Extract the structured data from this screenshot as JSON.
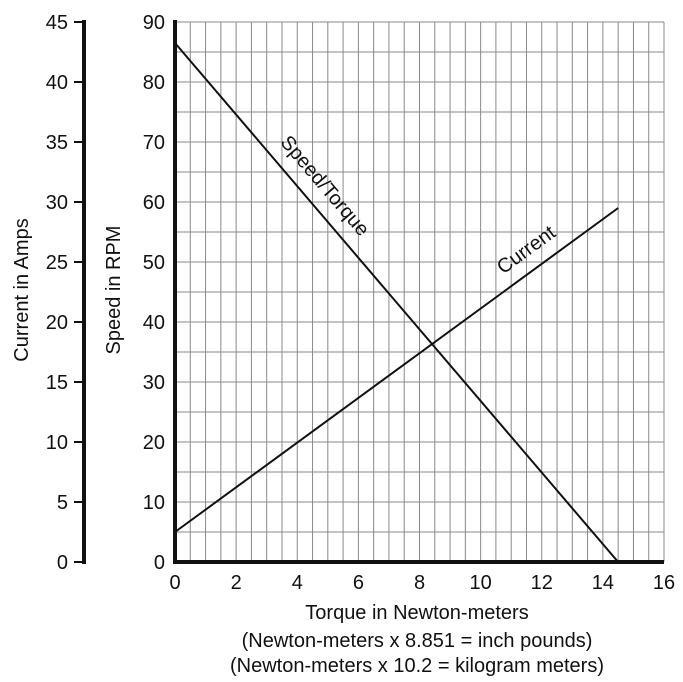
{
  "chart_data": {
    "type": "line",
    "xlabel": "Torque in Newton-meters",
    "x_notes": [
      "(Newton-meters x 8.851 = inch pounds)",
      "(Newton-meters x 10.2 = kilogram meters)"
    ],
    "x_ticks": [
      "0",
      "2",
      "4",
      "6",
      "8",
      "10",
      "12",
      "14",
      "16"
    ],
    "xlim": [
      0,
      16
    ],
    "y_left_outer": {
      "label": "Current in Amps",
      "ticks": [
        "0",
        "5",
        "10",
        "15",
        "20",
        "25",
        "30",
        "35",
        "40",
        "45"
      ],
      "lim": [
        0,
        45
      ]
    },
    "y_left_inner": {
      "label": "Speed in RPM",
      "ticks": [
        "0",
        "10",
        "20",
        "30",
        "40",
        "50",
        "60",
        "70",
        "80",
        "90"
      ],
      "lim": [
        0,
        90
      ]
    },
    "grid": true,
    "series": [
      {
        "name": "Speed/Torque",
        "axis": "speed",
        "points": [
          {
            "x": 0,
            "y": 86.5
          },
          {
            "x": 14.5,
            "y": 0
          }
        ]
      },
      {
        "name": "Current",
        "axis": "current",
        "points": [
          {
            "x": 0,
            "y": 2.5
          },
          {
            "x": 14.5,
            "y": 29.5
          }
        ]
      }
    ]
  }
}
